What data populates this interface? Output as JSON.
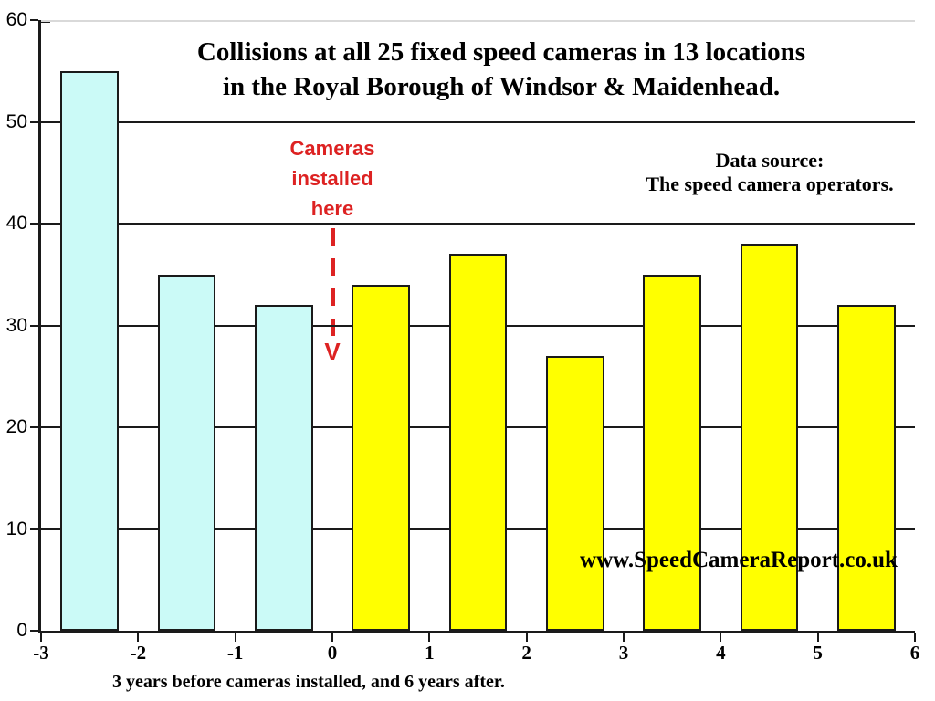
{
  "title": {
    "line1": "Collisions at all 25 fixed speed cameras in 13 locations",
    "line2": "in the Royal Borough of Windsor & Maidenhead."
  },
  "annotation": {
    "line1": "Cameras",
    "line2": "installed",
    "line3": "here",
    "arrow_glyph": "V"
  },
  "data_source": {
    "line1": "Data source:",
    "line2": "The speed camera operators."
  },
  "watermark_text": "www.SpeedCameraReport.co.uk",
  "x_axis_label": "3 years before cameras installed, and 6 years after.",
  "colors": {
    "bar_before": "#cbfaf7",
    "bar_after": "#ffff00",
    "bar_border": "#1a1a1a",
    "gridline": "#1a1a1a",
    "gridline_top": "#d9d9d9",
    "annotation_red": "#dd2222",
    "text": "#000000",
    "background": "#ffffff"
  },
  "chart_data": {
    "type": "bar",
    "title": "Collisions at all 25 fixed speed cameras in 13 locations in the Royal Borough of Windsor & Maidenhead.",
    "xlabel": "3 years before cameras installed, and 6 years after.",
    "ylabel": "",
    "xlim": [
      -3,
      6
    ],
    "ylim": [
      0,
      60
    ],
    "x_ticks": [
      -3,
      -2,
      -1,
      0,
      1,
      2,
      3,
      4,
      5,
      6
    ],
    "y_ticks": [
      0,
      10,
      20,
      30,
      40,
      50,
      60
    ],
    "bar_width": 0.6,
    "grid": "horizontal gridlines every 10, drawn behind bars",
    "legend": "none",
    "series": [
      {
        "name": "3 years before cameras installed",
        "color": "#cbfaf7",
        "bars": [
          {
            "x_center": -2.5,
            "value": 55
          },
          {
            "x_center": -1.5,
            "value": 35
          },
          {
            "x_center": -0.5,
            "value": 32
          }
        ]
      },
      {
        "name": "6 years after cameras installed",
        "color": "#ffff00",
        "bars": [
          {
            "x_center": 0.5,
            "value": 34
          },
          {
            "x_center": 1.5,
            "value": 37
          },
          {
            "x_center": 2.5,
            "value": 27
          },
          {
            "x_center": 3.5,
            "value": 35
          },
          {
            "x_center": 4.5,
            "value": 38
          },
          {
            "x_center": 5.5,
            "value": 32
          }
        ]
      }
    ],
    "annotations": {
      "cameras_installed_x": 0,
      "text": "Cameras installed here",
      "marker": "vertical red dashed line ending in V arrow at x = 0"
    }
  }
}
